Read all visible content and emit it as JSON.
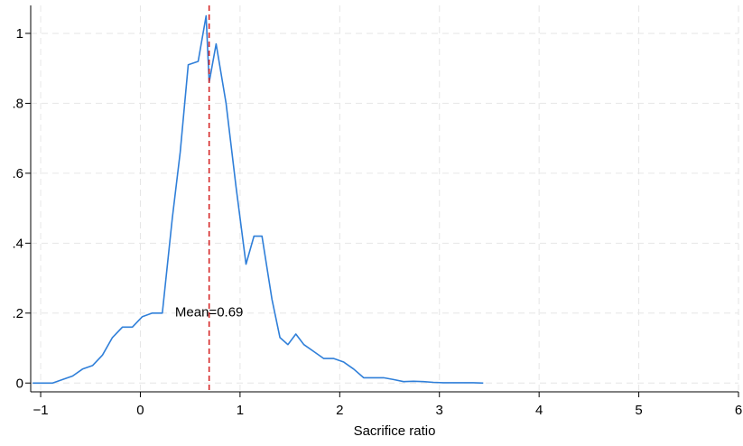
{
  "chart_data": {
    "type": "line",
    "title": "",
    "xlabel": "Sacrifice ratio",
    "ylabel": "",
    "xlim": [
      -1.1,
      6.0
    ],
    "ylim": [
      -0.02,
      1.08
    ],
    "x_ticks": [
      -1,
      0,
      1,
      2,
      3,
      4,
      5,
      6
    ],
    "x_tick_labels": [
      "−1",
      "0",
      "1",
      "2",
      "3",
      "4",
      "5",
      "6"
    ],
    "y_ticks": [
      0,
      0.2,
      0.4,
      0.6,
      0.8,
      1.0
    ],
    "y_tick_labels": [
      "0",
      ".2",
      ".4",
      ".6",
      ".8",
      "1"
    ],
    "grid": true,
    "colors": {
      "line": "#2f7fd9",
      "mean_line": "#d62728",
      "grid": "#e6e6e6"
    },
    "series": [
      {
        "x": [
          -1.08,
          -0.98,
          -0.88,
          -0.78,
          -0.68,
          -0.58,
          -0.48,
          -0.38,
          -0.28,
          -0.18,
          -0.08,
          0.02,
          0.12,
          0.22,
          0.32,
          0.4,
          0.48,
          0.58,
          0.66,
          0.69,
          0.76,
          0.86,
          0.96,
          1.06,
          1.14,
          1.22,
          1.32,
          1.4,
          1.48,
          1.56,
          1.64,
          1.74,
          1.84,
          1.94,
          2.04,
          2.14,
          2.24,
          2.34,
          2.44,
          2.54,
          2.64,
          2.74,
          2.84,
          2.94,
          3.04,
          3.14,
          3.24,
          3.34,
          3.44
        ],
        "y": [
          0.0,
          0.0,
          0.0,
          0.01,
          0.02,
          0.04,
          0.05,
          0.08,
          0.13,
          0.16,
          0.16,
          0.19,
          0.2,
          0.2,
          0.47,
          0.66,
          0.91,
          0.92,
          1.05,
          0.86,
          0.97,
          0.8,
          0.56,
          0.34,
          0.42,
          0.42,
          0.24,
          0.13,
          0.11,
          0.14,
          0.11,
          0.09,
          0.07,
          0.07,
          0.06,
          0.04,
          0.015,
          0.015,
          0.015,
          0.01,
          0.004,
          0.005,
          0.004,
          0.002,
          0.001,
          0.001,
          0.001,
          0.001,
          0.0
        ]
      }
    ],
    "mean": {
      "value": 0.69,
      "label": "Mean=0.69"
    }
  }
}
